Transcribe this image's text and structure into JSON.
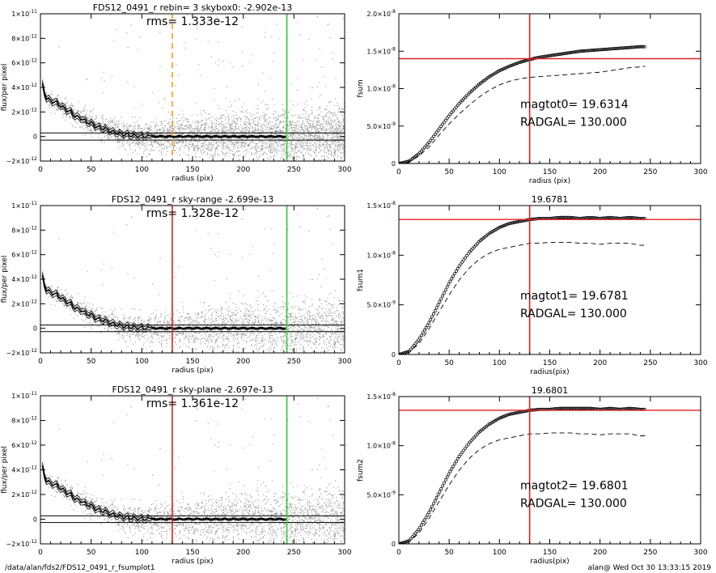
{
  "footer": {
    "path": "/data/alan/fds2/FDS12_0491_r_fsumplot1",
    "stamp": "alan@  Wed Oct 30 13:33:15 2019"
  },
  "colors": {
    "axis": "#000000",
    "scatter": "#9a9a9a",
    "red": "#e02020",
    "green": "#2ecc2e",
    "orange": "#ff9a1a",
    "profile": "#000000"
  },
  "chart_data": [
    {
      "type": "scatter",
      "title": "FDS12_0491_r rebin= 3    skybox0: -2.902e-13",
      "annotation": "rms= 1.333e-12",
      "xlabel": "radius (pix)",
      "ylabel": "flux/per pixel",
      "xlim": [
        0,
        300
      ],
      "ylim": [
        -2e-12,
        1e-11
      ],
      "xticks": [
        0,
        50,
        100,
        150,
        200,
        250,
        300
      ],
      "yticks": [
        {
          "v": -2e-12,
          "base": "−2×10",
          "exp": "-12"
        },
        {
          "v": 0,
          "base": "0",
          "exp": ""
        },
        {
          "v": 2e-12,
          "base": "2×10",
          "exp": "-12"
        },
        {
          "v": 4e-12,
          "base": "4×10",
          "exp": "-12"
        },
        {
          "v": 6e-12,
          "base": "6×10",
          "exp": "-12"
        },
        {
          "v": 8e-12,
          "base": "8×10",
          "exp": "-12"
        },
        {
          "v": 1e-11,
          "base": "1×10",
          "exp": "-11"
        }
      ],
      "vlines": [
        {
          "x": 130,
          "color": "orange",
          "dashed": true
        },
        {
          "x": 243,
          "color": "green",
          "dashed": false
        }
      ],
      "hlines": [
        -2.902e-13,
        2.902e-13
      ],
      "profile": {
        "x": [
          2,
          5,
          10,
          15,
          20,
          25,
          30,
          35,
          40,
          45,
          50,
          55,
          60,
          65,
          70,
          75,
          80,
          85,
          90,
          95,
          100,
          110,
          120,
          130,
          140,
          150,
          160,
          170,
          180,
          190,
          200,
          210,
          220,
          230,
          240
        ],
        "y": [
          4.2e-12,
          3.2e-12,
          2.9e-12,
          2.8e-12,
          2.5e-12,
          2.2e-12,
          2e-12,
          1.6e-12,
          1.5e-12,
          1.2e-12,
          1.1e-12,
          8e-13,
          7e-13,
          6e-13,
          4e-13,
          3e-13,
          2e-13,
          1.5e-13,
          1e-13,
          5e-14,
          3e-14,
          1e-14,
          0,
          0,
          0,
          1e-14,
          0,
          0,
          0,
          0,
          0,
          0,
          0,
          0,
          0
        ]
      }
    },
    {
      "type": "line",
      "title": "",
      "annotation": "",
      "xlabel": "radius (pix)",
      "ylabel": "fsum",
      "xlim": [
        0,
        300
      ],
      "ylim": [
        0,
        2e-08
      ],
      "xticks": [
        0,
        50,
        100,
        150,
        200,
        250,
        300
      ],
      "yticks": [
        {
          "v": 0,
          "base": "0",
          "exp": ""
        },
        {
          "v": 5e-09,
          "base": "5.0×10",
          "exp": "-9"
        },
        {
          "v": 1e-08,
          "base": "1.0×10",
          "exp": "-8"
        },
        {
          "v": 1.5e-08,
          "base": "1.5×10",
          "exp": "-8"
        },
        {
          "v": 2e-08,
          "base": "2.0×10",
          "exp": "-8"
        }
      ],
      "vline": 130,
      "hline": 1.4e-08,
      "text": [
        "magtot0=     19.6314",
        "RADGAL=      130.000"
      ],
      "series": [
        {
          "kind": "points",
          "x": [
            0,
            10,
            20,
            30,
            40,
            50,
            60,
            70,
            80,
            90,
            100,
            110,
            120,
            130,
            140,
            150,
            160,
            170,
            180,
            190,
            200,
            210,
            220,
            230,
            240,
            245
          ],
          "y": [
            0,
            3e-10,
            1.3e-09,
            2.8e-09,
            4.6e-09,
            6.4e-09,
            8e-09,
            9.4e-09,
            1.06e-08,
            1.16e-08,
            1.24e-08,
            1.3e-08,
            1.35e-08,
            1.39e-08,
            1.42e-08,
            1.44e-08,
            1.46e-08,
            1.48e-08,
            1.5e-08,
            1.51e-08,
            1.52e-08,
            1.53e-08,
            1.54e-08,
            1.55e-08,
            1.56e-08,
            1.56e-08
          ]
        },
        {
          "kind": "dashed",
          "x": [
            0,
            10,
            20,
            30,
            40,
            50,
            60,
            70,
            80,
            90,
            100,
            110,
            120,
            130,
            140,
            150,
            160,
            170,
            180,
            190,
            200,
            210,
            220,
            230,
            240,
            245
          ],
          "y": [
            0,
            2e-10,
            1e-09,
            2.2e-09,
            3.8e-09,
            5.3e-09,
            6.6e-09,
            7.8e-09,
            8.9e-09,
            9.8e-09,
            1.05e-08,
            1.1e-08,
            1.13e-08,
            1.15e-08,
            1.16e-08,
            1.17e-08,
            1.18e-08,
            1.19e-08,
            1.2e-08,
            1.21e-08,
            1.22e-08,
            1.24e-08,
            1.26e-08,
            1.28e-08,
            1.29e-08,
            1.3e-08
          ]
        }
      ]
    },
    {
      "type": "scatter",
      "title": "FDS12_0491_r sky-range -2.699e-13",
      "annotation": "rms= 1.328e-12",
      "xlabel": "radius (pix)",
      "ylabel": "flux/per pixel",
      "xlim": [
        0,
        300
      ],
      "ylim": [
        -2e-12,
        1e-11
      ],
      "xticks": [
        0,
        50,
        100,
        150,
        200,
        250,
        300
      ],
      "yticks": [
        {
          "v": -2e-12,
          "base": "−2×10",
          "exp": "-12"
        },
        {
          "v": 0,
          "base": "0",
          "exp": ""
        },
        {
          "v": 2e-12,
          "base": "2×10",
          "exp": "-12"
        },
        {
          "v": 4e-12,
          "base": "4×10",
          "exp": "-12"
        },
        {
          "v": 6e-12,
          "base": "6×10",
          "exp": "-12"
        },
        {
          "v": 8e-12,
          "base": "8×10",
          "exp": "-12"
        },
        {
          "v": 1e-11,
          "base": "1×10",
          "exp": "-11"
        }
      ],
      "vlines": [
        {
          "x": 130,
          "color": "red",
          "dashed": false
        },
        {
          "x": 243,
          "color": "green",
          "dashed": false
        }
      ],
      "hlines": [
        -2.699e-13,
        2.699e-13
      ],
      "profile": {
        "x": [
          2,
          5,
          10,
          15,
          20,
          25,
          30,
          35,
          40,
          45,
          50,
          55,
          60,
          65,
          70,
          75,
          80,
          85,
          90,
          95,
          100,
          110,
          120,
          130,
          140,
          150,
          160,
          170,
          180,
          190,
          200,
          210,
          220,
          230,
          240
        ],
        "y": [
          4.2e-12,
          3.2e-12,
          2.9e-12,
          2.8e-12,
          2.5e-12,
          2.2e-12,
          2e-12,
          1.6e-12,
          1.5e-12,
          1.2e-12,
          1.1e-12,
          8e-13,
          7e-13,
          6e-13,
          4e-13,
          3e-13,
          2e-13,
          1.5e-13,
          1e-13,
          5e-14,
          3e-14,
          1e-14,
          0,
          0,
          0,
          1e-14,
          0,
          0,
          0,
          0,
          0,
          0,
          0,
          0,
          0
        ]
      }
    },
    {
      "type": "line",
      "title": "19.6781",
      "annotation": "",
      "xlabel": "radius(pix)",
      "ylabel": "fsum1",
      "xlim": [
        0,
        300
      ],
      "ylim": [
        0,
        1.5e-08
      ],
      "xticks": [
        0,
        50,
        100,
        150,
        200,
        250,
        300
      ],
      "yticks": [
        {
          "v": 0,
          "base": "0",
          "exp": ""
        },
        {
          "v": 5e-09,
          "base": "5.0×10",
          "exp": "-9"
        },
        {
          "v": 1e-08,
          "base": "1.0×10",
          "exp": "-8"
        },
        {
          "v": 1.5e-08,
          "base": "1.5×10",
          "exp": "-8"
        }
      ],
      "vline": 130,
      "hline": 1.36e-08,
      "text": [
        "magtot1=     19.6781",
        "RADGAL=      130.000"
      ],
      "series": [
        {
          "kind": "points",
          "x": [
            0,
            10,
            20,
            30,
            40,
            50,
            60,
            70,
            80,
            90,
            100,
            110,
            120,
            130,
            140,
            150,
            160,
            170,
            180,
            190,
            200,
            210,
            220,
            230,
            240,
            245
          ],
          "y": [
            0,
            3e-10,
            1.5e-09,
            3.2e-09,
            5.2e-09,
            7.2e-09,
            8.9e-09,
            1.03e-08,
            1.14e-08,
            1.22e-08,
            1.28e-08,
            1.32e-08,
            1.34e-08,
            1.36e-08,
            1.37e-08,
            1.37e-08,
            1.38e-08,
            1.38e-08,
            1.37e-08,
            1.38e-08,
            1.37e-08,
            1.38e-08,
            1.37e-08,
            1.38e-08,
            1.37e-08,
            1.37e-08
          ]
        },
        {
          "kind": "dashed",
          "x": [
            0,
            10,
            20,
            30,
            40,
            50,
            60,
            70,
            80,
            90,
            100,
            110,
            120,
            130,
            140,
            150,
            160,
            170,
            180,
            190,
            200,
            210,
            220,
            230,
            240,
            245
          ],
          "y": [
            0,
            2e-10,
            1.1e-09,
            2.6e-09,
            4.3e-09,
            6e-09,
            7.5e-09,
            8.7e-09,
            9.6e-09,
            1.02e-08,
            1.06e-08,
            1.08e-08,
            1.1e-08,
            1.12e-08,
            1.12e-08,
            1.13e-08,
            1.13e-08,
            1.13e-08,
            1.12e-08,
            1.12e-08,
            1.11e-08,
            1.12e-08,
            1.12e-08,
            1.12e-08,
            1.1e-08,
            1.1e-08
          ]
        }
      ]
    },
    {
      "type": "scatter",
      "title": "FDS12_0491_r sky-plane -2.697e-13",
      "annotation": "rms= 1.361e-12",
      "xlabel": "radius (pix)",
      "ylabel": "flux/per pixel",
      "xlim": [
        0,
        300
      ],
      "ylim": [
        -2e-12,
        1e-11
      ],
      "xticks": [
        0,
        50,
        100,
        150,
        200,
        250,
        300
      ],
      "yticks": [
        {
          "v": -2e-12,
          "base": "−2×10",
          "exp": "-12"
        },
        {
          "v": 0,
          "base": "0",
          "exp": ""
        },
        {
          "v": 2e-12,
          "base": "2×10",
          "exp": "-12"
        },
        {
          "v": 4e-12,
          "base": "4×10",
          "exp": "-12"
        },
        {
          "v": 6e-12,
          "base": "6×10",
          "exp": "-12"
        },
        {
          "v": 8e-12,
          "base": "8×10",
          "exp": "-12"
        },
        {
          "v": 1e-11,
          "base": "1×10",
          "exp": "-11"
        }
      ],
      "vlines": [
        {
          "x": 130,
          "color": "red",
          "dashed": false
        },
        {
          "x": 243,
          "color": "green",
          "dashed": false
        }
      ],
      "hlines": [
        -2.697e-13,
        2.697e-13
      ],
      "profile": {
        "x": [
          2,
          5,
          10,
          15,
          20,
          25,
          30,
          35,
          40,
          45,
          50,
          55,
          60,
          65,
          70,
          75,
          80,
          85,
          90,
          95,
          100,
          110,
          120,
          130,
          140,
          150,
          160,
          170,
          180,
          190,
          200,
          210,
          220,
          230,
          240
        ],
        "y": [
          4.2e-12,
          3.2e-12,
          2.9e-12,
          2.8e-12,
          2.5e-12,
          2.2e-12,
          2e-12,
          1.6e-12,
          1.5e-12,
          1.2e-12,
          1.1e-12,
          8e-13,
          7e-13,
          6e-13,
          4e-13,
          3e-13,
          2e-13,
          1.5e-13,
          1e-13,
          5e-14,
          3e-14,
          1e-14,
          0,
          0,
          0,
          1e-14,
          0,
          0,
          0,
          0,
          0,
          0,
          0,
          0,
          0
        ]
      }
    },
    {
      "type": "line",
      "title": "19.6801",
      "annotation": "",
      "xlabel": "radius(pix)",
      "ylabel": "fsum2",
      "xlim": [
        0,
        300
      ],
      "ylim": [
        0,
        1.5e-08
      ],
      "xticks": [
        0,
        50,
        100,
        150,
        200,
        250,
        300
      ],
      "yticks": [
        {
          "v": 0,
          "base": "0",
          "exp": ""
        },
        {
          "v": 5e-09,
          "base": "5.0×10",
          "exp": "-9"
        },
        {
          "v": 1e-08,
          "base": "1.0×10",
          "exp": "-8"
        },
        {
          "v": 1.5e-08,
          "base": "1.5×10",
          "exp": "-8"
        }
      ],
      "vline": 130,
      "hline": 1.36e-08,
      "text": [
        "magtot2=     19.6801",
        "RADGAL=      130.000"
      ],
      "series": [
        {
          "kind": "points",
          "x": [
            0,
            10,
            20,
            30,
            40,
            50,
            60,
            70,
            80,
            90,
            100,
            110,
            120,
            130,
            140,
            150,
            160,
            170,
            180,
            190,
            200,
            210,
            220,
            230,
            240,
            245
          ],
          "y": [
            0,
            3e-10,
            1.5e-09,
            3.2e-09,
            5.2e-09,
            7.2e-09,
            8.9e-09,
            1.03e-08,
            1.14e-08,
            1.22e-08,
            1.28e-08,
            1.32e-08,
            1.34e-08,
            1.36e-08,
            1.37e-08,
            1.37e-08,
            1.38e-08,
            1.38e-08,
            1.38e-08,
            1.38e-08,
            1.37e-08,
            1.38e-08,
            1.37e-08,
            1.38e-08,
            1.37e-08,
            1.37e-08
          ]
        },
        {
          "kind": "dashed",
          "x": [
            0,
            10,
            20,
            30,
            40,
            50,
            60,
            70,
            80,
            90,
            100,
            110,
            120,
            130,
            140,
            150,
            160,
            170,
            180,
            190,
            200,
            210,
            220,
            230,
            240,
            245
          ],
          "y": [
            0,
            2e-10,
            1.1e-09,
            2.6e-09,
            4.3e-09,
            6e-09,
            7.5e-09,
            8.7e-09,
            9.6e-09,
            1.02e-08,
            1.06e-08,
            1.08e-08,
            1.1e-08,
            1.12e-08,
            1.12e-08,
            1.13e-08,
            1.13e-08,
            1.13e-08,
            1.12e-08,
            1.12e-08,
            1.11e-08,
            1.12e-08,
            1.12e-08,
            1.12e-08,
            1.1e-08,
            1.1e-08
          ]
        }
      ]
    }
  ]
}
